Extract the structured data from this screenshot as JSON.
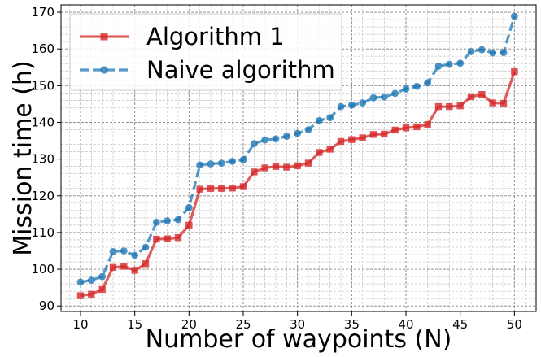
{
  "chart_data": {
    "type": "line",
    "title": "",
    "xlabel": "Number of waypoints (N)",
    "ylabel": "Mission time (h)",
    "xlim": [
      8.2,
      52.0
    ],
    "ylim": [
      88.5,
      172.0
    ],
    "xticks": [
      10,
      15,
      20,
      25,
      30,
      35,
      40,
      45,
      50
    ],
    "yticks": [
      90,
      100,
      110,
      120,
      130,
      140,
      150,
      160,
      170
    ],
    "grid": true,
    "legend_position": "top-left",
    "x": [
      10,
      11,
      12,
      13,
      14,
      15,
      16,
      17,
      18,
      19,
      20,
      21,
      22,
      23,
      24,
      25,
      26,
      27,
      28,
      29,
      30,
      31,
      32,
      33,
      34,
      35,
      36,
      37,
      38,
      39,
      40,
      41,
      42,
      43,
      44,
      45,
      46,
      47,
      48,
      49,
      50
    ],
    "series": [
      {
        "name": "Algorithm 1",
        "color": "#d62728",
        "marker": "square",
        "linestyle": "solid",
        "values": [
          92.8,
          93.2,
          94.5,
          100.5,
          100.8,
          99.7,
          101.5,
          108.2,
          108.3,
          108.6,
          112.0,
          121.8,
          122.0,
          122.0,
          122.1,
          122.5,
          126.5,
          127.6,
          128.0,
          127.8,
          128.2,
          128.9,
          131.8,
          132.7,
          134.8,
          135.3,
          135.8,
          136.7,
          136.8,
          137.9,
          138.5,
          138.8,
          139.4,
          144.3,
          144.3,
          144.5,
          147.0,
          147.6,
          145.3,
          145.2,
          153.8
        ]
      },
      {
        "name": "Naive algorithm",
        "color": "#1f77b4",
        "marker": "circle",
        "linestyle": "dashed",
        "values": [
          96.5,
          97.0,
          98.0,
          104.8,
          105.0,
          103.8,
          106.0,
          112.8,
          113.2,
          113.5,
          116.8,
          128.4,
          128.7,
          128.9,
          129.4,
          129.8,
          134.2,
          135.2,
          135.5,
          136.2,
          137.0,
          138.0,
          140.5,
          141.3,
          144.3,
          144.7,
          145.3,
          146.7,
          146.9,
          147.9,
          149.1,
          149.8,
          150.8,
          155.3,
          155.8,
          156.1,
          159.3,
          159.8,
          158.9,
          159.0,
          168.9
        ]
      }
    ]
  }
}
